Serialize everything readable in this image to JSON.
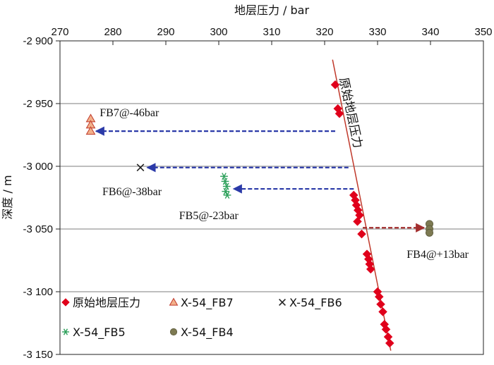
{
  "chart_data": {
    "type": "scatter",
    "x_axis": {
      "label": "地层压力 / bar",
      "position": "top",
      "range": [
        270,
        350
      ],
      "ticks": [
        270,
        280,
        290,
        300,
        310,
        320,
        330,
        340,
        350
      ]
    },
    "y_axis": {
      "label": "深度 / m",
      "range": [
        -3150,
        -2900
      ],
      "ticks": [
        -2900,
        -2950,
        -3000,
        -3050,
        -3100,
        -3150
      ],
      "tick_labels": [
        "-2 900",
        "-2 950",
        "-3 000",
        "-3 050",
        "-3 100",
        "-3 150"
      ]
    },
    "grid": "horizontal",
    "trend_line": {
      "label": "原始地层压力",
      "from": [
        321.5,
        -2915
      ],
      "to": [
        332.5,
        -3147
      ],
      "color": "#c0392b"
    },
    "series": [
      {
        "name": "原始地层压力",
        "marker": "diamond",
        "color": "#e0001b",
        "x": [
          322.0,
          322.5,
          322.8,
          325.5,
          325.8,
          326.0,
          326.3,
          326.6,
          326.2,
          327.0,
          328.0,
          328.3,
          328.5,
          328.7,
          330.0,
          330.3,
          330.6,
          331.0,
          331.3,
          331.6,
          332.0,
          332.3
        ],
        "y": [
          -2935,
          -2954,
          -2958,
          -3023,
          -3027,
          -3031,
          -3035,
          -3039,
          -3044,
          -3054,
          -3070,
          -3074,
          -3078,
          -3082,
          -3100,
          -3104,
          -3110,
          -3116,
          -3126,
          -3130,
          -3136,
          -3141
        ]
      },
      {
        "name": "X-54_FB7",
        "marker": "triangle",
        "color": "#f2b08a",
        "x": [
          275.8,
          275.8,
          275.8
        ],
        "y": [
          -2962,
          -2967,
          -2972
        ]
      },
      {
        "name": "X-54_FB6",
        "marker": "x",
        "color": "#222222",
        "x": [
          285.2
        ],
        "y": [
          -3001
        ]
      },
      {
        "name": "X-54_FB5",
        "marker": "asterisk",
        "color": "#2ca05a",
        "x": [
          301.0,
          301.2,
          301.5,
          301.3,
          301.6
        ],
        "y": [
          -3008,
          -3012,
          -3016,
          -3020,
          -3023
        ]
      },
      {
        "name": "X-54_FB4",
        "marker": "circle",
        "color": "#7d7a52",
        "x": [
          339.8,
          339.8,
          339.8
        ],
        "y": [
          -3046,
          -3050,
          -3053
        ]
      }
    ],
    "arrows": [
      {
        "from": [
          322.0,
          -2972
        ],
        "to": [
          276.8,
          -2972
        ],
        "color": "#2b3aa8",
        "style": "dashed"
      },
      {
        "from": [
          324.5,
          -3001
        ],
        "to": [
          286.5,
          -3001
        ],
        "color": "#2b3aa8",
        "style": "dashed"
      },
      {
        "from": [
          325.5,
          -3018
        ],
        "to": [
          302.8,
          -3018
        ],
        "color": "#2b3aa8",
        "style": "dashed"
      },
      {
        "from": [
          327.2,
          -3049
        ],
        "to": [
          338.8,
          -3049
        ],
        "color": "#a32e2e",
        "style": "dashed"
      }
    ],
    "annotations": [
      {
        "text": "FB7@-46bar",
        "x": 277.5,
        "y": -2960
      },
      {
        "text": "FB6@-38bar",
        "x": 278.0,
        "y": -3023
      },
      {
        "text": "FB5@-23bar",
        "x": 292.5,
        "y": -3042
      },
      {
        "text": "FB4@+13bar",
        "x": 335.5,
        "y": -3073
      }
    ],
    "legend": {
      "placement": "bottom-left, inside plot",
      "entries": [
        "原始地层压力",
        "X-54_FB7",
        "X-54_FB6",
        "X-54_FB5",
        "X-54_FB4"
      ]
    }
  }
}
